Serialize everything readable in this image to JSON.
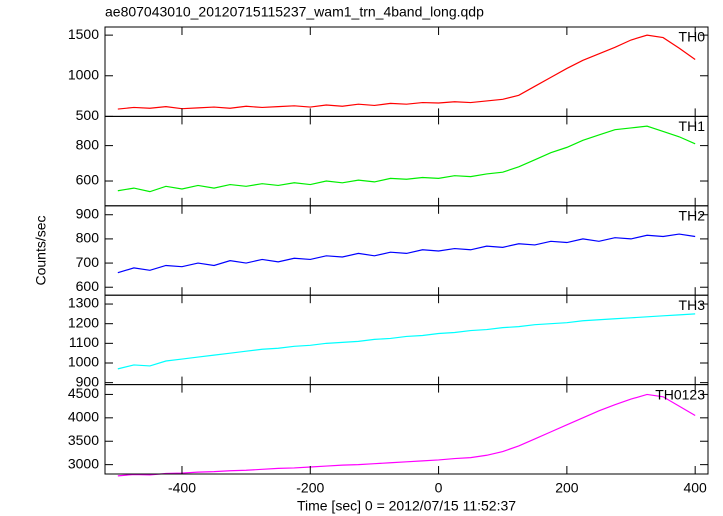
{
  "chart_data": [
    {
      "type": "line",
      "title": "ae807043010_20120715115237_wam1_trn_4band_long.qdp",
      "x": [
        -500,
        -475,
        -450,
        -425,
        -400,
        -375,
        -350,
        -325,
        -300,
        -275,
        -250,
        -225,
        -200,
        -175,
        -150,
        -125,
        -100,
        -75,
        -50,
        -25,
        0,
        25,
        50,
        75,
        100,
        125,
        150,
        175,
        200,
        225,
        250,
        275,
        300,
        325,
        350,
        375,
        400
      ],
      "series": [
        {
          "name": "TH0",
          "color": "#ff0000",
          "values": [
            590,
            610,
            600,
            620,
            595,
            605,
            615,
            600,
            625,
            610,
            620,
            630,
            615,
            640,
            625,
            650,
            635,
            660,
            650,
            670,
            665,
            680,
            670,
            690,
            710,
            760,
            870,
            980,
            1090,
            1190,
            1270,
            1350,
            1440,
            1500,
            1470,
            1340,
            1200
          ]
        }
      ],
      "xlim": [
        -520,
        420
      ],
      "xticks": [
        -400,
        -200,
        0,
        200,
        400
      ],
      "ylim": [
        500,
        1600
      ],
      "yticks": [
        500,
        1000,
        1500
      ]
    },
    {
      "type": "line",
      "x": [
        -500,
        -475,
        -450,
        -425,
        -400,
        -375,
        -350,
        -325,
        -300,
        -275,
        -250,
        -225,
        -200,
        -175,
        -150,
        -125,
        -100,
        -75,
        -50,
        -25,
        0,
        25,
        50,
        75,
        100,
        125,
        150,
        175,
        200,
        225,
        250,
        275,
        300,
        325,
        350,
        375,
        400
      ],
      "series": [
        {
          "name": "TH1",
          "color": "#00ee00",
          "values": [
            545,
            560,
            540,
            570,
            555,
            575,
            560,
            580,
            570,
            585,
            575,
            590,
            580,
            600,
            590,
            605,
            595,
            615,
            610,
            620,
            615,
            630,
            625,
            640,
            650,
            680,
            720,
            760,
            790,
            830,
            860,
            890,
            900,
            910,
            880,
            850,
            810
          ]
        }
      ],
      "xlim": [
        -520,
        420
      ],
      "xticks": [
        -400,
        -200,
        0,
        200,
        400
      ],
      "ylim": [
        460,
        965
      ],
      "yticks": [
        600,
        800
      ]
    },
    {
      "type": "line",
      "ylabel": "Counts/sec",
      "x": [
        -500,
        -475,
        -450,
        -425,
        -400,
        -375,
        -350,
        -325,
        -300,
        -275,
        -250,
        -225,
        -200,
        -175,
        -150,
        -125,
        -100,
        -75,
        -50,
        -25,
        0,
        25,
        50,
        75,
        100,
        125,
        150,
        175,
        200,
        225,
        250,
        275,
        300,
        325,
        350,
        375,
        400
      ],
      "series": [
        {
          "name": "TH2",
          "color": "#0000ff",
          "values": [
            660,
            680,
            670,
            690,
            685,
            700,
            690,
            710,
            700,
            715,
            705,
            720,
            715,
            730,
            725,
            740,
            730,
            745,
            740,
            755,
            750,
            760,
            755,
            770,
            765,
            780,
            775,
            790,
            785,
            800,
            790,
            805,
            800,
            815,
            810,
            820,
            810
          ]
        }
      ],
      "xlim": [
        -520,
        420
      ],
      "xticks": [
        -400,
        -200,
        0,
        200,
        400
      ],
      "ylim": [
        567,
        937
      ],
      "yticks": [
        600,
        700,
        800,
        900
      ]
    },
    {
      "type": "line",
      "x": [
        -500,
        -475,
        -450,
        -425,
        -400,
        -375,
        -350,
        -325,
        -300,
        -275,
        -250,
        -225,
        -200,
        -175,
        -150,
        -125,
        -100,
        -75,
        -50,
        -25,
        0,
        25,
        50,
        75,
        100,
        125,
        150,
        175,
        200,
        225,
        250,
        275,
        300,
        325,
        350,
        375,
        400
      ],
      "series": [
        {
          "name": "TH3",
          "color": "#00ffff",
          "values": [
            970,
            990,
            985,
            1010,
            1020,
            1030,
            1040,
            1050,
            1060,
            1070,
            1075,
            1085,
            1090,
            1100,
            1105,
            1110,
            1120,
            1125,
            1135,
            1140,
            1150,
            1155,
            1165,
            1170,
            1180,
            1185,
            1195,
            1200,
            1205,
            1215,
            1220,
            1225,
            1230,
            1235,
            1240,
            1245,
            1250
          ]
        }
      ],
      "xlim": [
        -520,
        420
      ],
      "xticks": [
        -400,
        -200,
        0,
        200,
        400
      ],
      "ylim": [
        890,
        1345
      ],
      "yticks": [
        900,
        1000,
        1100,
        1200,
        1300
      ]
    },
    {
      "type": "line",
      "xlabel": "Time [sec] 0 = 2012/07/15 11:52:37",
      "x": [
        -500,
        -475,
        -450,
        -425,
        -400,
        -375,
        -350,
        -325,
        -300,
        -275,
        -250,
        -225,
        -200,
        -175,
        -150,
        -125,
        -100,
        -75,
        -50,
        -25,
        0,
        25,
        50,
        75,
        100,
        125,
        150,
        175,
        200,
        225,
        250,
        275,
        300,
        325,
        350,
        375,
        400
      ],
      "series": [
        {
          "name": "TH0123",
          "color": "#ff00ff",
          "values": [
            2760,
            2790,
            2780,
            2810,
            2820,
            2840,
            2850,
            2870,
            2880,
            2900,
            2920,
            2930,
            2950,
            2970,
            2990,
            3000,
            3020,
            3040,
            3060,
            3080,
            3100,
            3130,
            3150,
            3200,
            3280,
            3400,
            3550,
            3700,
            3850,
            4000,
            4150,
            4280,
            4400,
            4500,
            4450,
            4250,
            4050
          ]
        }
      ],
      "xlim": [
        -520,
        420
      ],
      "xticks": [
        -400,
        -200,
        0,
        200,
        400
      ],
      "ylim": [
        2800,
        4710
      ],
      "yticks": [
        3000,
        3500,
        4000,
        4500
      ]
    }
  ]
}
